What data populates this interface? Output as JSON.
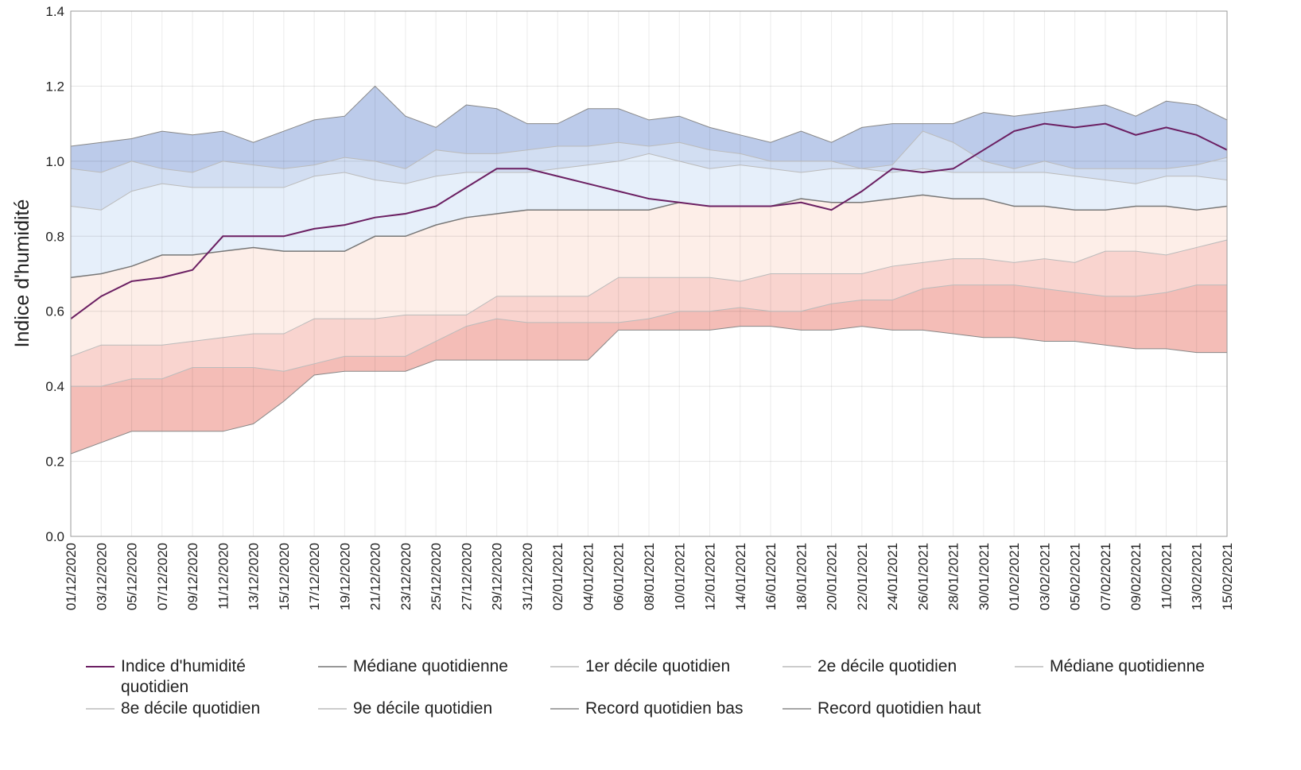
{
  "chart_data": {
    "type": "band-line",
    "y_label": "Indice d'humidité",
    "categories": [
      "01/12/2020",
      "03/12/2020",
      "05/12/2020",
      "07/12/2020",
      "09/12/2020",
      "11/12/2020",
      "13/12/2020",
      "15/12/2020",
      "17/12/2020",
      "19/12/2020",
      "21/12/2020",
      "23/12/2020",
      "25/12/2020",
      "27/12/2020",
      "29/12/2020",
      "31/12/2020",
      "02/01/2021",
      "04/01/2021",
      "06/01/2021",
      "08/01/2021",
      "10/01/2021",
      "12/01/2021",
      "14/01/2021",
      "16/01/2021",
      "18/01/2021",
      "20/01/2021",
      "22/01/2021",
      "24/01/2021",
      "26/01/2021",
      "28/01/2021",
      "30/01/2021",
      "01/02/2021",
      "03/02/2021",
      "05/02/2021",
      "07/02/2021",
      "09/02/2021",
      "11/02/2021",
      "13/02/2021",
      "15/02/2021"
    ],
    "ylim": [
      0,
      1.4
    ],
    "yticks": [
      {
        "value": 0,
        "label": "0.0"
      },
      0.2,
      0.4,
      0.6,
      0.8,
      {
        "value": 1,
        "label": "1.0"
      },
      1.2,
      1.4
    ],
    "grid": true,
    "series": [
      {
        "name": "Indice d'humidité quotidien",
        "color": "#6b1f62",
        "width": 2,
        "values": [
          0.58,
          0.64,
          0.68,
          0.69,
          0.71,
          0.8,
          0.8,
          0.8,
          0.82,
          0.83,
          0.85,
          0.86,
          0.88,
          0.93,
          0.98,
          0.98,
          0.96,
          0.94,
          0.92,
          0.9,
          0.89,
          0.88,
          0.88,
          0.88,
          0.89,
          0.87,
          0.92,
          0.98,
          0.97,
          0.98,
          1.03,
          1.08,
          1.1,
          1.09,
          1.1,
          1.07,
          1.09,
          1.07,
          1.03
        ]
      },
      {
        "name": "Médiane quotidienne",
        "color": "#777777",
        "width": 1.5,
        "fill": "#fdeee8",
        "values": [
          0.69,
          0.7,
          0.72,
          0.75,
          0.75,
          0.76,
          0.77,
          0.76,
          0.76,
          0.76,
          0.8,
          0.8,
          0.83,
          0.85,
          0.86,
          0.87,
          0.87,
          0.87,
          0.87,
          0.87,
          0.89,
          0.88,
          0.88,
          0.88,
          0.9,
          0.89,
          0.89,
          0.9,
          0.91,
          0.9,
          0.9,
          0.88,
          0.88,
          0.87,
          0.87,
          0.88,
          0.88,
          0.87,
          0.88
        ]
      },
      {
        "name": "1er décile quotidien",
        "color": "#bbbbbb",
        "width": 1,
        "fill": "#f4bdb7",
        "values": [
          0.4,
          0.4,
          0.42,
          0.42,
          0.45,
          0.45,
          0.45,
          0.44,
          0.46,
          0.48,
          0.48,
          0.48,
          0.52,
          0.56,
          0.58,
          0.57,
          0.57,
          0.57,
          0.57,
          0.58,
          0.6,
          0.6,
          0.61,
          0.6,
          0.6,
          0.62,
          0.63,
          0.63,
          0.66,
          0.67,
          0.67,
          0.67,
          0.66,
          0.65,
          0.64,
          0.64,
          0.65,
          0.67,
          0.67
        ]
      },
      {
        "name": "2e décile quotidien",
        "color": "#bbbbbb",
        "width": 1,
        "fill": "#f9d4cf",
        "values": [
          0.48,
          0.51,
          0.51,
          0.51,
          0.52,
          0.53,
          0.54,
          0.54,
          0.58,
          0.58,
          0.58,
          0.59,
          0.59,
          0.59,
          0.64,
          0.64,
          0.64,
          0.64,
          0.69,
          0.69,
          0.69,
          0.69,
          0.68,
          0.7,
          0.7,
          0.7,
          0.7,
          0.72,
          0.73,
          0.74,
          0.74,
          0.73,
          0.74,
          0.73,
          0.76,
          0.76,
          0.75,
          0.77,
          0.79
        ]
      },
      {
        "name": "Médiane quotidienne",
        "color": "#bbbbbb",
        "width": 1
      },
      {
        "name": "8e décile quotidien",
        "color": "#bbbbbb",
        "width": 1,
        "fill": "#e6effa",
        "values": [
          0.88,
          0.87,
          0.92,
          0.94,
          0.93,
          0.93,
          0.93,
          0.93,
          0.96,
          0.97,
          0.95,
          0.94,
          0.96,
          0.97,
          0.97,
          0.97,
          0.98,
          0.99,
          1.0,
          1.02,
          1.0,
          0.98,
          0.99,
          0.98,
          0.97,
          0.98,
          0.98,
          0.97,
          0.98,
          0.97,
          0.97,
          0.97,
          0.97,
          0.96,
          0.95,
          0.94,
          0.96,
          0.96,
          0.95
        ]
      },
      {
        "name": "9e décile quotidien",
        "color": "#bbbbbb",
        "width": 1,
        "fill": "#d2def2",
        "values": [
          0.98,
          0.97,
          1.0,
          0.98,
          0.97,
          1.0,
          0.99,
          0.98,
          0.99,
          1.01,
          1.0,
          0.98,
          1.03,
          1.02,
          1.02,
          1.03,
          1.04,
          1.04,
          1.05,
          1.04,
          1.05,
          1.03,
          1.02,
          1.0,
          1.0,
          1.0,
          0.98,
          0.99,
          1.08,
          1.05,
          1.0,
          0.98,
          1.0,
          0.98,
          0.98,
          0.98,
          0.98,
          0.99,
          1.01
        ]
      },
      {
        "name": "Record quotidien bas",
        "color": "#888888",
        "width": 1,
        "values": [
          0.22,
          0.25,
          0.28,
          0.28,
          0.28,
          0.28,
          0.3,
          0.36,
          0.43,
          0.44,
          0.44,
          0.44,
          0.47,
          0.47,
          0.47,
          0.47,
          0.47,
          0.47,
          0.55,
          0.55,
          0.55,
          0.55,
          0.56,
          0.56,
          0.55,
          0.55,
          0.56,
          0.55,
          0.55,
          0.54,
          0.53,
          0.53,
          0.52,
          0.52,
          0.51,
          0.5,
          0.5,
          0.49,
          0.49
        ]
      },
      {
        "name": "Record quotidien haut",
        "color": "#888888",
        "width": 1,
        "fill": "#bccbea",
        "values": [
          1.04,
          1.05,
          1.06,
          1.08,
          1.07,
          1.08,
          1.05,
          1.08,
          1.11,
          1.12,
          1.2,
          1.12,
          1.09,
          1.15,
          1.14,
          1.1,
          1.1,
          1.14,
          1.14,
          1.11,
          1.12,
          1.09,
          1.07,
          1.05,
          1.08,
          1.05,
          1.09,
          1.1,
          1.1,
          1.1,
          1.13,
          1.12,
          1.13,
          1.14,
          1.15,
          1.12,
          1.16,
          1.15,
          1.11
        ]
      }
    ]
  }
}
